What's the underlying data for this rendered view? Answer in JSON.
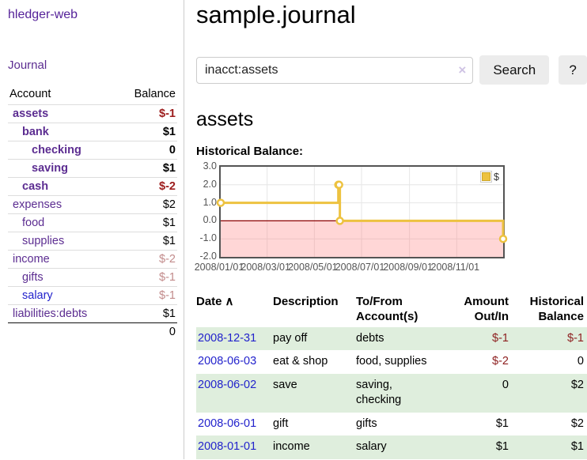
{
  "sidebar": {
    "app_title": "hledger-web",
    "journal_link": "Journal",
    "accounts_header": {
      "account": "Account",
      "balance": "Balance"
    },
    "accounts": [
      {
        "name": "assets",
        "balance": "$-1",
        "indent": 1,
        "bold": true,
        "tone": "strong-neg",
        "link_blue": false
      },
      {
        "name": "bank",
        "balance": "$1",
        "indent": 2,
        "bold": true,
        "tone": "normal",
        "link_blue": false
      },
      {
        "name": "checking",
        "balance": "0",
        "indent": 3,
        "bold": true,
        "tone": "normal",
        "link_blue": false
      },
      {
        "name": "saving",
        "balance": "$1",
        "indent": 3,
        "bold": true,
        "tone": "normal",
        "link_blue": false
      },
      {
        "name": "cash",
        "balance": "$-2",
        "indent": 2,
        "bold": true,
        "tone": "strong-neg",
        "link_blue": false
      },
      {
        "name": "expenses",
        "balance": "$2",
        "indent": 1,
        "bold": false,
        "tone": "normal",
        "link_blue": false
      },
      {
        "name": "food",
        "balance": "$1",
        "indent": 2,
        "bold": false,
        "tone": "normal",
        "link_blue": false
      },
      {
        "name": "supplies",
        "balance": "$1",
        "indent": 2,
        "bold": false,
        "tone": "normal",
        "link_blue": false
      },
      {
        "name": "income",
        "balance": "$-2",
        "indent": 1,
        "bold": false,
        "tone": "muted-neg",
        "link_blue": false
      },
      {
        "name": "gifts",
        "balance": "$-1",
        "indent": 2,
        "bold": false,
        "tone": "muted-neg",
        "link_blue": false
      },
      {
        "name": "salary",
        "balance": "$-1",
        "indent": 2,
        "bold": false,
        "tone": "muted-neg",
        "link_blue": true
      },
      {
        "name": "liabilities:debts",
        "balance": "$1",
        "indent": 1,
        "bold": false,
        "tone": "normal",
        "link_blue": false
      }
    ],
    "total": "0"
  },
  "main": {
    "title": "sample.journal",
    "search": {
      "value": "inacct:assets",
      "clear_icon": "×",
      "button_label": "Search",
      "help_label": "?"
    },
    "account_heading": "assets",
    "chart_title": "Historical Balance:"
  },
  "chart_data": {
    "type": "line",
    "step": true,
    "title": "Historical Balance:",
    "legend_position": "top-right",
    "legend": [
      {
        "label": "$",
        "color": "#edc240"
      }
    ],
    "x_start": "2008-01-01",
    "x_end": "2008-12-31",
    "x_ticks": [
      "2008/01/01",
      "2008/03/01",
      "2008/05/01",
      "2008/07/01",
      "2008/09/01",
      "2008/11/01"
    ],
    "y_ticks": [
      "3.0",
      "2.0",
      "1.0",
      "0.0",
      "-1.0",
      "-2.0"
    ],
    "ylim": [
      -2,
      3
    ],
    "grid": true,
    "series": [
      {
        "name": "$",
        "color": "#edc240",
        "points": [
          {
            "x": "2008-01-01",
            "y": 1
          },
          {
            "x": "2008-06-01",
            "y": 2
          },
          {
            "x": "2008-06-02",
            "y": 2
          },
          {
            "x": "2008-06-03",
            "y": 0
          },
          {
            "x": "2008-12-31",
            "y": -1
          }
        ]
      }
    ],
    "negative_region_fill": "rgba(255,120,120,0.30)",
    "zero_line_color": "#8b0000",
    "gridline_color": "#e6e6e6"
  },
  "register": {
    "headers": {
      "date": "Date",
      "sort_icon": "∧",
      "description": "Description",
      "accounts": "To/From Account(s)",
      "amount": "Amount Out/In",
      "balance": "Historical Balance"
    },
    "rows": [
      {
        "date": "2008-12-31",
        "description": "pay off",
        "accounts_lines": [
          "debts"
        ],
        "amount": "$-1",
        "amount_negative": true,
        "balance": "$-1",
        "balance_negative": true
      },
      {
        "date": "2008-06-03",
        "description": "eat & shop",
        "accounts_lines": [
          "food, supplies"
        ],
        "amount": "$-2",
        "amount_negative": true,
        "balance": "0",
        "balance_negative": false
      },
      {
        "date": "2008-06-02",
        "description": "save",
        "accounts_lines": [
          "saving,",
          "checking"
        ],
        "amount": "0",
        "amount_negative": false,
        "balance": "$2",
        "balance_negative": false
      },
      {
        "date": "2008-06-01",
        "description": "gift",
        "accounts_lines": [
          "gifts"
        ],
        "amount": "$1",
        "amount_negative": false,
        "balance": "$2",
        "balance_negative": false
      },
      {
        "date": "2008-01-01",
        "description": "income",
        "accounts_lines": [
          "salary"
        ],
        "amount": "$1",
        "amount_negative": false,
        "balance": "$1",
        "balance_negative": false
      }
    ]
  },
  "colors": {
    "purple_link": "#5c2d91",
    "blue_link": "#2222cc",
    "negative_strong": "#9c1b1b",
    "negative_muted": "#c28b8b",
    "negative_cell": "#8d1f1f",
    "row_stripe_green": "#dfeedd",
    "series_yellow": "#edc240"
  }
}
